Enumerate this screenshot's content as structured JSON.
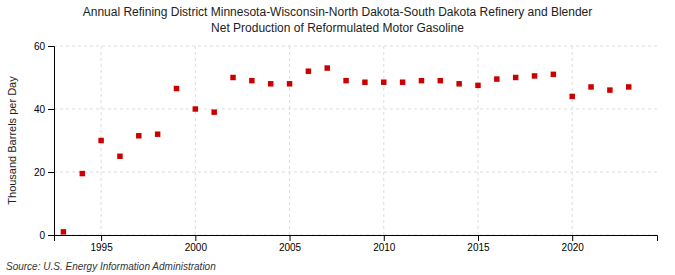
{
  "chart_data": {
    "type": "scatter",
    "title": "Annual Refining District Minnesota-Wisconsin-North Dakota-South Dakota Refinery and Blender",
    "subtitle": "Net Production of Reformulated Motor Gasoline",
    "ylabel": "Thousand Barrels per Day",
    "source": "Source: U.S. Energy Information Administration",
    "x": [
      1993,
      1994,
      1995,
      1996,
      1997,
      1998,
      1999,
      2000,
      2001,
      2002,
      2003,
      2004,
      2005,
      2006,
      2007,
      2008,
      2009,
      2010,
      2011,
      2012,
      2013,
      2014,
      2015,
      2016,
      2017,
      2018,
      2019,
      2020,
      2021,
      2022,
      2023
    ],
    "values": [
      1.0,
      19.5,
      30.0,
      25.0,
      31.5,
      32.0,
      46.5,
      40.0,
      39.0,
      50.0,
      49.0,
      48.0,
      48.0,
      52.0,
      53.0,
      49.0,
      48.5,
      48.5,
      48.5,
      49.0,
      49.0,
      48.0,
      47.5,
      49.5,
      50.0,
      50.5,
      51.0,
      44.0,
      47.0,
      46.0,
      47.0
    ],
    "color": "#cc0000",
    "marker": "square",
    "xlim": [
      1992.5,
      2024.5
    ],
    "ylim": [
      0,
      60
    ],
    "xticks": [
      1995,
      2000,
      2005,
      2010,
      2015,
      2020
    ],
    "yticks": [
      0,
      20,
      40,
      60
    ],
    "grid": true
  }
}
